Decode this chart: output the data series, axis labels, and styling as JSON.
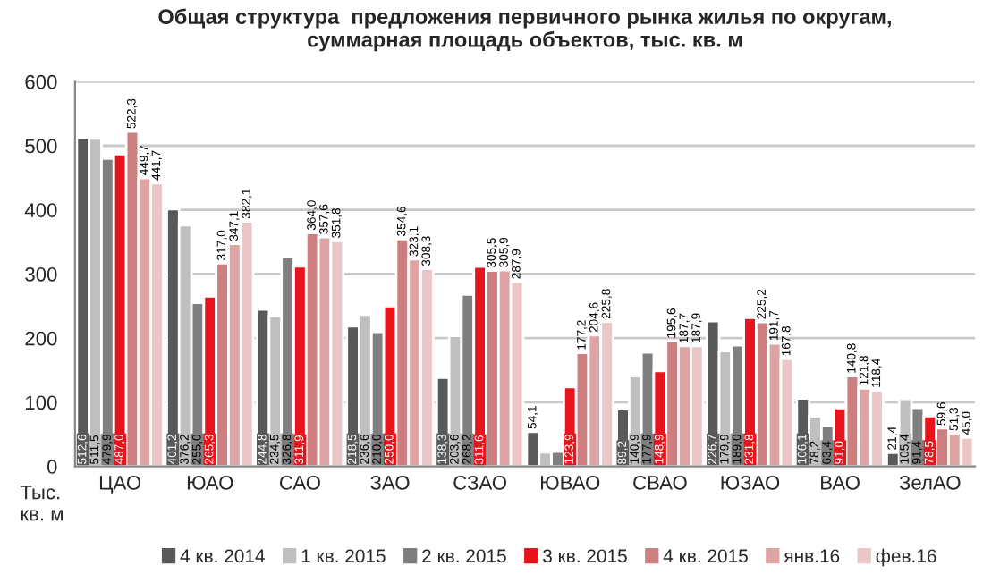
{
  "chart_data": {
    "type": "bar",
    "title": "Общая структура  предложения первичного рынка жилья по округам,\nсуммарная площадь объектов, тыс. кв. м",
    "categories": [
      "ЦАО",
      "ЮАО",
      "САО",
      "ЗАО",
      "СЗАО",
      "ЮВАО",
      "СВАО",
      "ЮЗАО",
      "ВАО",
      "ЗелАО"
    ],
    "series": [
      {
        "name": "4 кв. 2014",
        "color": "#595959",
        "values": [
          512.6,
          401.2,
          244.8,
          218.5,
          138.3,
          54.1,
          89.2,
          226.7,
          106.1,
          21.4
        ],
        "value_labels": [
          "512,6",
          "401,2",
          "244,8",
          "218,5",
          "138,3",
          "54,1",
          "89,2",
          "226,7",
          "106,1",
          "21,4"
        ]
      },
      {
        "name": "1 кв. 2015",
        "color": "#bfbfbf",
        "values": [
          511.5,
          376.2,
          234.5,
          236.6,
          203.6,
          22,
          140.9,
          179.9,
          78.2,
          105.4
        ],
        "value_labels": [
          "511,5",
          "376,2",
          "234,5",
          "236,6",
          "203,6",
          null,
          "140,9",
          "179,9",
          "78,2",
          "105,4"
        ]
      },
      {
        "name": "2 кв. 2015",
        "color": "#7f7f7f",
        "values": [
          479.9,
          255.0,
          326.8,
          210.0,
          268.2,
          23,
          177.9,
          189.0,
          63.4,
          91.4
        ],
        "value_labels": [
          "479,9",
          "255,0",
          "326,8",
          "210,0",
          "268,2",
          null,
          "177,9",
          "189,0",
          "63,4",
          "91,4"
        ]
      },
      {
        "name": "3 кв. 2015",
        "color": "#e8141c",
        "values": [
          487.0,
          265.3,
          311.9,
          250.0,
          311.6,
          123.9,
          148.9,
          231.8,
          91.0,
          78.5
        ],
        "value_labels": [
          "487,0",
          "265,3",
          "311,9",
          "250,0",
          "311,6",
          "123,9",
          "148,9",
          "231,8",
          "91,0",
          "78,5"
        ]
      },
      {
        "name": "4 кв. 2015",
        "color": "#cd7f7f",
        "values": [
          522.3,
          317.0,
          364.0,
          354.6,
          305.5,
          177.2,
          195.6,
          225.2,
          140.8,
          59.6
        ],
        "value_labels": [
          "522,3",
          "317,0",
          "364,0",
          "354,6",
          "305,5",
          "177,2",
          "195,6",
          "225,2",
          "140,8",
          "59,6"
        ]
      },
      {
        "name": "янв.16",
        "color": "#dea3a3",
        "values": [
          449.7,
          347.1,
          357.6,
          323.1,
          305.9,
          204.6,
          187.7,
          191.7,
          121.8,
          51.3
        ],
        "value_labels": [
          "449,7",
          "347,1",
          "357,6",
          "323,1",
          "305,9",
          "204,6",
          "187,7",
          "191,7",
          "121,8",
          "51,3"
        ]
      },
      {
        "name": "фев.16",
        "color": "#ebc6c6",
        "values": [
          441.7,
          382.1,
          351.8,
          308.3,
          287.9,
          225.8,
          187.9,
          167.8,
          118.4,
          45.0
        ],
        "value_labels": [
          "441,7",
          "382,1",
          "351,8",
          "308,3",
          "287,9",
          "225,8",
          "187,9",
          "167,8",
          "118,4",
          "45,0"
        ]
      }
    ],
    "ylim": [
      0,
      600
    ],
    "yticks": [
      0,
      100,
      200,
      300,
      400,
      500,
      600
    ],
    "grid": "y",
    "legend": "bottom",
    "annotations": [
      "Тыс.\nкв. м"
    ]
  }
}
